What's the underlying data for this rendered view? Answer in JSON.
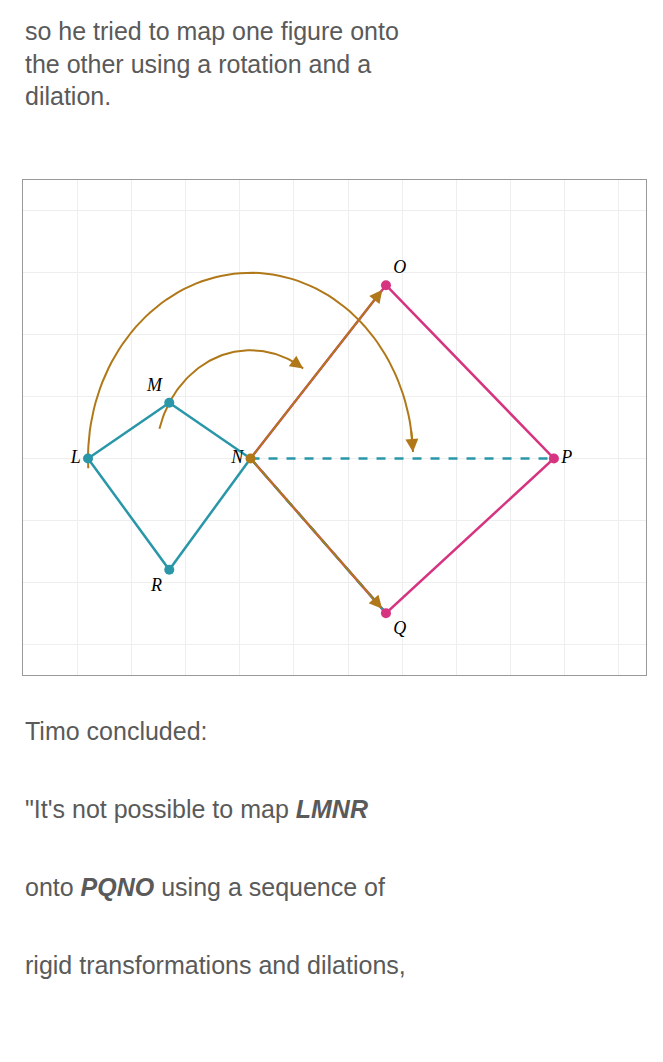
{
  "chart_data": {
    "type": "line",
    "title": "so he tried to map one figure onto\nthe other using a rotation and a\ndilation.",
    "caption": [
      "Timo concluded:",
      "\"It's not possible to map LMNR",
      "onto PQNO using a sequence of",
      "rigid transformations and dilations,"
    ],
    "series": [
      {
        "color": "#2997a8",
        "line_style": "solid",
        "x": [
          1.2,
          2.7,
          4.2,
          2.7,
          1.2
        ],
        "values": [
          5.0,
          5.9,
          5.0,
          3.2,
          5.0
        ]
      },
      {
        "color": "#d63480",
        "line_style": "solid",
        "x": [
          6.7,
          9.8,
          6.7,
          4.2,
          6.7
        ],
        "values": [
          7.8,
          5.0,
          2.5,
          5.0,
          7.8
        ]
      },
      {
        "color": "#2997a8",
        "line_style": "dashed",
        "x": [
          4.2,
          9.8
        ],
        "values": [
          5.0,
          5.0
        ]
      },
      {
        "color": "#2997a8",
        "line_style": "dashed",
        "x": [
          4.2,
          6.7
        ],
        "values": [
          5.0,
          2.5
        ]
      }
    ],
    "points": [
      {
        "label": "L",
        "x": 1.2,
        "y": 5.0,
        "color": "#2997a8"
      },
      {
        "label": "M",
        "x": 2.7,
        "y": 5.9,
        "color": "#2997a8"
      },
      {
        "label": "N",
        "x": 4.2,
        "y": 5.0,
        "color": "#b07818"
      },
      {
        "label": "R",
        "x": 2.7,
        "y": 3.2,
        "color": "#2997a8"
      },
      {
        "label": "O",
        "x": 6.7,
        "y": 7.8,
        "color": "#d63480"
      },
      {
        "label": "P",
        "x": 9.8,
        "y": 5.0,
        "color": "#d63480"
      },
      {
        "label": "Q",
        "x": 6.7,
        "y": 2.5,
        "color": "#d63480"
      }
    ],
    "arcs": [
      {
        "center": "N",
        "from": "M",
        "to": "O",
        "color": "#b07818"
      },
      {
        "center": "N",
        "from": "L",
        "to": "P",
        "color": "#b07818"
      }
    ],
    "arrows": [
      {
        "from": "N",
        "to": "O",
        "color": "#b07818"
      },
      {
        "from": "N",
        "to": "Q",
        "color": "#b07818"
      }
    ],
    "xlim": [
      0.0,
      11.5
    ],
    "ylim": [
      1.5,
      9.5
    ],
    "xticks": [
      0,
      1,
      2,
      3,
      4,
      5,
      6,
      7,
      8,
      9,
      10,
      11
    ],
    "yticks": [
      2,
      3,
      4,
      5,
      6,
      7,
      8,
      9
    ],
    "grid": true,
    "tick_labels": false
  }
}
